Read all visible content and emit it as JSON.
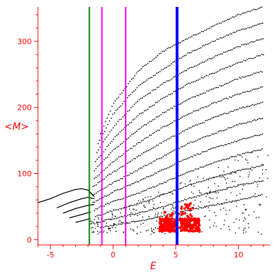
{
  "chart_data": {
    "type": "scatter",
    "title": "",
    "xlabel": "E",
    "ylabel": "<M>",
    "xlim": [
      -6,
      12.5
    ],
    "ylim": [
      -8,
      352
    ],
    "xticks": [
      -5,
      0,
      5,
      10
    ],
    "yticks": [
      0,
      100,
      200,
      300
    ],
    "tick_labels_x": [
      "-5",
      "0",
      "5",
      "10"
    ],
    "tick_labels_y": [
      "0",
      "100",
      "200",
      "300"
    ],
    "grid": false,
    "legend": "none",
    "colors": {
      "axis": "#ff0000",
      "points": "#000000",
      "highlight_points": "#ff0000",
      "vline_green": "#008000",
      "vline_magenta": "#ff00ff",
      "vline_blue": "#0000ff"
    },
    "vertical_lines": [
      {
        "x": -1.9,
        "color": "#008000"
      },
      {
        "x": -0.9,
        "color": "#ff00ff"
      },
      {
        "x": 1.0,
        "color": "#ff00ff"
      },
      {
        "x": 5.1,
        "color": "#0000ff"
      }
    ],
    "series": [
      {
        "type": "curve",
        "color": "#000000",
        "curves": [
          [
            [
              -6.0,
              56
            ],
            [
              -5.0,
              62
            ],
            [
              -4.0,
              70
            ],
            [
              -3.0,
              76
            ],
            [
              -2.5,
              77
            ],
            [
              -2.0,
              75
            ],
            [
              -1.5,
              65
            ]
          ],
          [
            [
              -4.5,
              48
            ],
            [
              -3.5,
              56
            ],
            [
              -2.5,
              62
            ],
            [
              -2.0,
              64
            ],
            [
              -1.5,
              62
            ]
          ],
          [
            [
              -4.0,
              40
            ],
            [
              -3.0,
              47
            ],
            [
              -2.0,
              52
            ],
            [
              -1.5,
              53
            ]
          ],
          [
            [
              -3.5,
              33
            ],
            [
              -2.5,
              38
            ],
            [
              -1.8,
              42
            ]
          ],
          [
            [
              -3.0,
              26
            ],
            [
              -2.2,
              30
            ],
            [
              -1.8,
              32
            ]
          ]
        ]
      },
      {
        "type": "dotted-curves",
        "color": "#000000",
        "curves": [
          [
            [
              -1.0,
              160
            ],
            [
              0,
              205
            ],
            [
              2,
              255
            ],
            [
              4,
              285
            ],
            [
              6,
              305
            ],
            [
              8,
              323
            ],
            [
              10,
              340
            ],
            [
              12,
              352
            ]
          ],
          [
            [
              -1.2,
              145
            ],
            [
              0,
              190
            ],
            [
              2,
              232
            ],
            [
              4,
              258
            ],
            [
              6,
              282
            ],
            [
              8,
              300
            ],
            [
              10,
              316
            ],
            [
              12,
              328
            ]
          ],
          [
            [
              -1.3,
              132
            ],
            [
              0,
              170
            ],
            [
              2,
              210
            ],
            [
              4,
              236
            ],
            [
              6,
              258
            ],
            [
              8,
              276
            ],
            [
              10,
              292
            ],
            [
              12,
              304
            ]
          ],
          [
            [
              -1.4,
              118
            ],
            [
              0,
              152
            ],
            [
              2,
              188
            ],
            [
              4,
              214
            ],
            [
              6,
              236
            ],
            [
              8,
              252
            ],
            [
              10,
              268
            ],
            [
              12,
              280
            ]
          ],
          [
            [
              -1.5,
              105
            ],
            [
              0,
              135
            ],
            [
              2,
              166
            ],
            [
              4,
              192
            ],
            [
              6,
              212
            ],
            [
              8,
              228
            ],
            [
              10,
              244
            ],
            [
              12,
              255
            ]
          ],
          [
            [
              -1.5,
              92
            ],
            [
              0,
              118
            ],
            [
              2,
              146
            ],
            [
              4,
              170
            ],
            [
              6,
              190
            ],
            [
              8,
              206
            ],
            [
              10,
              220
            ],
            [
              12,
              231
            ]
          ],
          [
            [
              -1.6,
              80
            ],
            [
              0,
              102
            ],
            [
              2,
              126
            ],
            [
              4,
              148
            ],
            [
              6,
              168
            ],
            [
              8,
              184
            ],
            [
              10,
              198
            ],
            [
              12,
              208
            ]
          ],
          [
            [
              -1.6,
              68
            ],
            [
              0,
              86
            ],
            [
              2,
              106
            ],
            [
              4,
              126
            ],
            [
              6,
              146
            ],
            [
              8,
              160
            ],
            [
              10,
              174
            ],
            [
              12,
              184
            ]
          ],
          [
            [
              -1.6,
              56
            ],
            [
              0,
              72
            ],
            [
              2,
              88
            ],
            [
              4,
              106
            ],
            [
              6,
              124
            ],
            [
              8,
              138
            ],
            [
              10,
              150
            ],
            [
              12,
              160
            ]
          ],
          [
            [
              -1.5,
              45
            ],
            [
              0,
              58
            ],
            [
              2,
              70
            ],
            [
              4,
              86
            ],
            [
              6,
              102
            ],
            [
              8,
              116
            ],
            [
              10,
              128
            ],
            [
              12,
              137
            ]
          ],
          [
            [
              -1.4,
              35
            ],
            [
              0,
              44
            ],
            [
              2,
              54
            ],
            [
              4,
              68
            ],
            [
              6,
              82
            ],
            [
              8,
              94
            ],
            [
              10,
              104
            ],
            [
              12,
              113
            ]
          ],
          [
            [
              -1.3,
              26
            ],
            [
              0,
              32
            ],
            [
              2,
              40
            ],
            [
              4,
              50
            ],
            [
              6,
              62
            ],
            [
              8,
              72
            ],
            [
              10,
              82
            ],
            [
              12,
              90
            ]
          ],
          [
            [
              -1.0,
              18
            ],
            [
              0,
              22
            ],
            [
              2,
              28
            ],
            [
              4,
              36
            ],
            [
              6,
              44
            ],
            [
              8,
              52
            ],
            [
              10,
              60
            ],
            [
              12,
              68
            ]
          ]
        ]
      },
      {
        "type": "cluster",
        "color": "#ff0000",
        "clusters": [
          {
            "x": [
              3.7,
              5.0
            ],
            "y": [
              12,
              32
            ],
            "count": 170
          },
          {
            "x": [
              5.3,
              6.9
            ],
            "y": [
              12,
              32
            ],
            "count": 150
          },
          {
            "x": [
              5.4,
              6.4
            ],
            "y": [
              30,
              55
            ],
            "count": 25
          },
          {
            "x": [
              4.0,
              4.8
            ],
            "y": [
              30,
              42
            ],
            "count": 12
          }
        ]
      }
    ]
  }
}
